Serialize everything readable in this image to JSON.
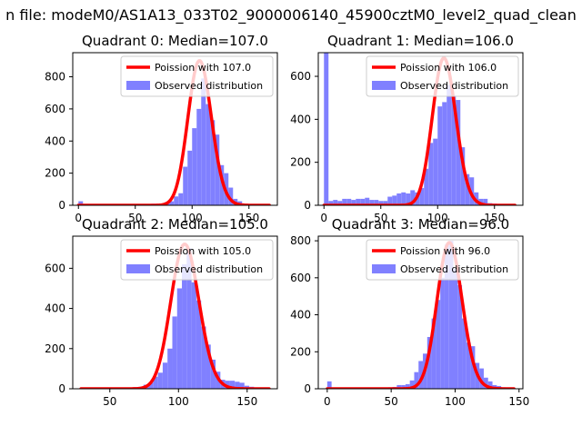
{
  "suptitle": "n file: modeM0/AS1A13_033T02_9000006140_45900cztM0_level2_quad_clean",
  "colors": {
    "bars": "#8080ff",
    "curve": "#ff0000",
    "frame": "#000000",
    "legend_edge": "#cccccc"
  },
  "chart_data": [
    {
      "type": "bar",
      "title": "Quadrant 0: Median=107.0",
      "xlim": [
        -5,
        175
      ],
      "ylim": [
        0,
        950
      ],
      "xticks": [
        0,
        50,
        100,
        150
      ],
      "yticks": [
        0,
        200,
        400,
        600,
        800
      ],
      "bin_width": 4,
      "bins": [
        [
          0,
          25
        ],
        [
          4,
          8
        ],
        [
          8,
          5
        ],
        [
          12,
          5
        ],
        [
          16,
          5
        ],
        [
          20,
          5
        ],
        [
          24,
          5
        ],
        [
          28,
          5
        ],
        [
          32,
          5
        ],
        [
          36,
          5
        ],
        [
          40,
          5
        ],
        [
          44,
          5
        ],
        [
          48,
          5
        ],
        [
          52,
          5
        ],
        [
          56,
          5
        ],
        [
          60,
          5
        ],
        [
          64,
          10
        ],
        [
          68,
          10
        ],
        [
          72,
          10
        ],
        [
          76,
          20
        ],
        [
          80,
          25
        ],
        [
          84,
          55
        ],
        [
          88,
          75
        ],
        [
          92,
          240
        ],
        [
          96,
          340
        ],
        [
          100,
          480
        ],
        [
          104,
          600
        ],
        [
          108,
          790
        ],
        [
          112,
          630
        ],
        [
          116,
          530
        ],
        [
          120,
          440
        ],
        [
          124,
          250
        ],
        [
          128,
          200
        ],
        [
          132,
          110
        ],
        [
          136,
          40
        ],
        [
          140,
          25
        ],
        [
          144,
          10
        ],
        [
          148,
          6
        ],
        [
          152,
          5
        ],
        [
          156,
          5
        ],
        [
          160,
          5
        ],
        [
          164,
          4
        ]
      ],
      "poisson": {
        "label": "Poission with 107.0",
        "lambda": 107.0,
        "peak": 900,
        "x_range": [
          0,
          168
        ]
      },
      "legend": [
        "Poission with 107.0",
        "Observed distribution"
      ]
    },
    {
      "type": "bar",
      "title": "Quadrant 1: Median=106.0",
      "xlim": [
        -5,
        175
      ],
      "ylim": [
        0,
        710
      ],
      "xticks": [
        0,
        50,
        100,
        150
      ],
      "yticks": [
        0,
        200,
        400,
        600
      ],
      "bin_width": 4,
      "bins": [
        [
          0,
          710
        ],
        [
          4,
          20
        ],
        [
          8,
          25
        ],
        [
          12,
          20
        ],
        [
          16,
          30
        ],
        [
          20,
          30
        ],
        [
          24,
          25
        ],
        [
          28,
          30
        ],
        [
          32,
          30
        ],
        [
          36,
          35
        ],
        [
          40,
          25
        ],
        [
          44,
          25
        ],
        [
          48,
          20
        ],
        [
          52,
          20
        ],
        [
          56,
          40
        ],
        [
          60,
          45
        ],
        [
          64,
          55
        ],
        [
          68,
          60
        ],
        [
          72,
          55
        ],
        [
          76,
          70
        ],
        [
          80,
          60
        ],
        [
          84,
          80
        ],
        [
          88,
          170
        ],
        [
          92,
          290
        ],
        [
          96,
          310
        ],
        [
          100,
          460
        ],
        [
          104,
          480
        ],
        [
          108,
          560
        ],
        [
          112,
          510
        ],
        [
          116,
          490
        ],
        [
          120,
          270
        ],
        [
          124,
          145
        ],
        [
          128,
          130
        ],
        [
          132,
          60
        ],
        [
          136,
          30
        ],
        [
          140,
          30
        ],
        [
          144,
          10
        ],
        [
          148,
          8
        ],
        [
          152,
          6
        ],
        [
          156,
          5
        ],
        [
          160,
          5
        ],
        [
          164,
          4
        ]
      ],
      "poisson": {
        "label": "Poission with 106.0",
        "lambda": 106.0,
        "peak": 685,
        "x_range": [
          0,
          168
        ]
      },
      "legend": [
        "Poission with 106.0",
        "Observed distribution"
      ]
    },
    {
      "type": "bar",
      "title": "Quadrant 2: Median=105.0",
      "xlim": [
        23,
        172
      ],
      "ylim": [
        0,
        760
      ],
      "xticks": [
        50,
        100,
        150
      ],
      "yticks": [
        0,
        200,
        400,
        600
      ],
      "bin_width": 3.5,
      "bins": [
        [
          29,
          5
        ],
        [
          32.5,
          5
        ],
        [
          36,
          5
        ],
        [
          39.5,
          5
        ],
        [
          43,
          5
        ],
        [
          46.5,
          5
        ],
        [
          50,
          5
        ],
        [
          53.5,
          5
        ],
        [
          57,
          5
        ],
        [
          60.5,
          5
        ],
        [
          64,
          5
        ],
        [
          67.5,
          8
        ],
        [
          71,
          10
        ],
        [
          74.5,
          20
        ],
        [
          78,
          30
        ],
        [
          81.5,
          60
        ],
        [
          85,
          80
        ],
        [
          88.5,
          130
        ],
        [
          92,
          200
        ],
        [
          95.5,
          360
        ],
        [
          99,
          500
        ],
        [
          102.5,
          620
        ],
        [
          106,
          700
        ],
        [
          109.5,
          530
        ],
        [
          113,
          440
        ],
        [
          116.5,
          310
        ],
        [
          120,
          220
        ],
        [
          123.5,
          145
        ],
        [
          127,
          85
        ],
        [
          130.5,
          45
        ],
        [
          134,
          40
        ],
        [
          137.5,
          40
        ],
        [
          141,
          35
        ],
        [
          144.5,
          30
        ],
        [
          148,
          15
        ],
        [
          151.5,
          10
        ],
        [
          155,
          6
        ],
        [
          158.5,
          5
        ],
        [
          162,
          5
        ]
      ],
      "poisson": {
        "label": "Poission with 105.0",
        "lambda": 105.0,
        "peak": 720,
        "x_range": [
          29,
          166
        ]
      },
      "legend": [
        "Poission with 105.0",
        "Observed distribution"
      ]
    },
    {
      "type": "bar",
      "title": "Quadrant 3: Median=96.0",
      "xlim": [
        -7,
        153
      ],
      "ylim": [
        0,
        825
      ],
      "xticks": [
        0,
        50,
        100,
        150
      ],
      "yticks": [
        0,
        200,
        400,
        600,
        800
      ],
      "bin_width": 3.4,
      "bins": [
        [
          0,
          40
        ],
        [
          3.4,
          5
        ],
        [
          6.8,
          5
        ],
        [
          10.2,
          5
        ],
        [
          13.6,
          5
        ],
        [
          17,
          5
        ],
        [
          20.4,
          5
        ],
        [
          23.8,
          5
        ],
        [
          27.2,
          5
        ],
        [
          30.6,
          5
        ],
        [
          34,
          5
        ],
        [
          37.4,
          5
        ],
        [
          40.8,
          5
        ],
        [
          44.2,
          5
        ],
        [
          47.6,
          8
        ],
        [
          51,
          10
        ],
        [
          54.4,
          20
        ],
        [
          57.8,
          20
        ],
        [
          61.2,
          25
        ],
        [
          64.6,
          45
        ],
        [
          68,
          90
        ],
        [
          71.4,
          150
        ],
        [
          74.8,
          190
        ],
        [
          78.2,
          280
        ],
        [
          81.6,
          380
        ],
        [
          85,
          480
        ],
        [
          88.4,
          600
        ],
        [
          91.8,
          780
        ],
        [
          95.2,
          800
        ],
        [
          98.6,
          650
        ],
        [
          102,
          560
        ],
        [
          105.4,
          380
        ],
        [
          108.8,
          250
        ],
        [
          112.2,
          230
        ],
        [
          115.6,
          140
        ],
        [
          119,
          110
        ],
        [
          122.4,
          60
        ],
        [
          125.8,
          40
        ],
        [
          129.2,
          20
        ],
        [
          132.6,
          15
        ],
        [
          136,
          8
        ],
        [
          139.4,
          5
        ],
        [
          142.8,
          4
        ]
      ],
      "poisson": {
        "label": "Poission with 96.0",
        "lambda": 96.0,
        "peak": 790,
        "x_range": [
          0,
          146
        ]
      },
      "legend": [
        "Poission with 96.0",
        "Observed distribution"
      ]
    }
  ]
}
